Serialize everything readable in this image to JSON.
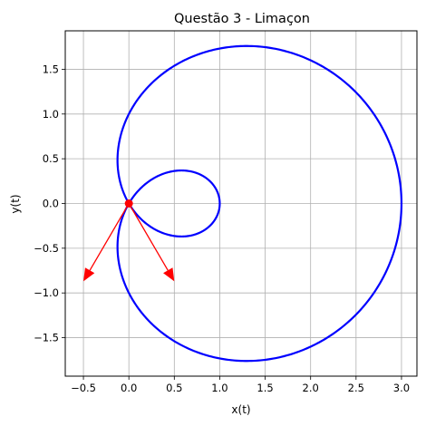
{
  "chart_data": {
    "type": "line",
    "title": "Questão 3 - Limaçon",
    "xlabel": "x(t)",
    "ylabel": "y(t)",
    "xlim": [
      -0.7,
      3.17
    ],
    "ylim": [
      -1.93,
      1.93
    ],
    "xticks": [
      -0.5,
      0.0,
      0.5,
      1.0,
      1.5,
      2.0,
      2.5,
      3.0
    ],
    "xtick_labels": [
      "−0.5",
      "0.0",
      "0.5",
      "1.0",
      "1.5",
      "2.0",
      "2.5",
      "3.0"
    ],
    "yticks": [
      -1.5,
      -1.0,
      -0.5,
      0.0,
      0.5,
      1.0,
      1.5
    ],
    "ytick_labels": [
      "−1.5",
      "−1.0",
      "−0.5",
      "0.0",
      "0.5",
      "1.0",
      "1.5"
    ],
    "grid": true,
    "series": [
      {
        "curve": "r = 1 + 2cos(t)",
        "color": "#0000ff",
        "x": [
          3.0,
          2.96,
          2.84,
          2.65,
          2.38,
          2.06,
          1.69,
          1.28,
          0.85,
          0.43,
          0.05,
          -0.05,
          -0.07,
          0.0,
          0.2,
          0.45,
          0.7,
          0.88,
          0.98,
          1.0,
          0.98,
          0.88,
          0.7,
          0.45,
          0.2,
          0.0,
          -0.07,
          -0.05,
          0.05,
          0.43,
          0.85,
          1.28,
          1.69,
          2.06,
          2.38,
          2.65,
          2.84,
          2.96,
          3.0
        ],
        "y": [
          0.0,
          0.52,
          1.0,
          1.38,
          1.64,
          1.76,
          1.74,
          1.6,
          1.36,
          1.03,
          0.6,
          0.4,
          0.28,
          0.0,
          -0.11,
          -0.28,
          -0.36,
          -0.3,
          -0.14,
          0.0,
          0.14,
          0.3,
          0.36,
          0.28,
          0.11,
          0.0,
          -0.28,
          -0.4,
          -0.6,
          -1.03,
          -1.36,
          -1.6,
          -1.74,
          -1.76,
          -1.64,
          -1.38,
          -1.0,
          -0.52,
          0.0
        ]
      }
    ],
    "point": {
      "x": 0.0,
      "y": 0.0,
      "color": "#ff0000"
    },
    "arrows": [
      {
        "from": [
          0.0,
          0.0
        ],
        "to": [
          -0.5,
          -0.87
        ],
        "color": "#ff0000"
      },
      {
        "from": [
          0.0,
          0.0
        ],
        "to": [
          0.5,
          -0.87
        ],
        "color": "#ff0000"
      }
    ]
  }
}
